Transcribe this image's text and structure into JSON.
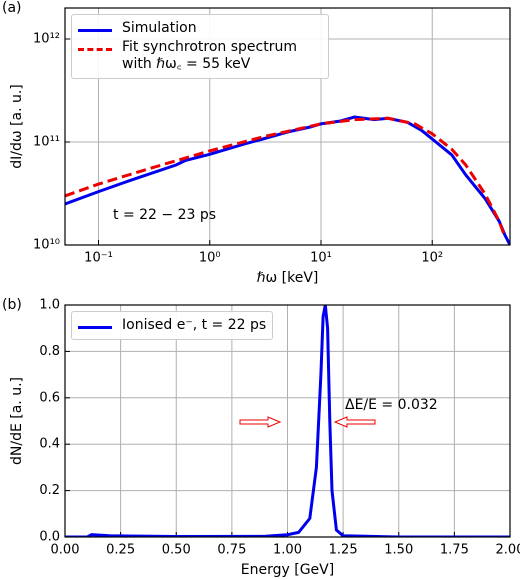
{
  "chart_data": [
    {
      "type": "line",
      "panel_label": "(a)",
      "xlabel": "ℏω [keV]",
      "ylabel": "dI/dω [a. u.]",
      "xscale": "log",
      "yscale": "log",
      "grid": true,
      "xlim": [
        0.05,
        500
      ],
      "ylim": [
        10000000000.0,
        2000000000000.0
      ],
      "xticks": [
        {
          "value": 0.1,
          "label": "10⁻¹"
        },
        {
          "value": 1,
          "label": "10⁰"
        },
        {
          "value": 10,
          "label": "10¹"
        },
        {
          "value": 100,
          "label": "10²"
        }
      ],
      "yticks": [
        {
          "value": 10000000000.0,
          "label": "10¹⁰"
        },
        {
          "value": 100000000000.0,
          "label": "10¹¹"
        },
        {
          "value": 1000000000000.0,
          "label": "10¹²"
        }
      ],
      "annotation": "t = 22 − 23 ps",
      "legend": "upper left",
      "series": [
        {
          "name": "Simulation",
          "color": "#0000ee",
          "dash": false,
          "x": [
            0.05,
            0.1,
            0.2,
            0.5,
            0.6,
            1,
            2,
            3,
            5,
            8,
            10,
            15,
            20,
            30,
            40,
            60,
            80,
            100,
            150,
            200,
            300,
            400,
            450,
            500
          ],
          "values": [
            25000000000.0,
            33000000000.0,
            43000000000.0,
            60000000000.0,
            66000000000.0,
            76000000000.0,
            95000000000.0,
            107000000000.0,
            125000000000.0,
            140000000000.0,
            150000000000.0,
            160000000000.0,
            175000000000.0,
            165000000000.0,
            170000000000.0,
            155000000000.0,
            130000000000.0,
            107000000000.0,
            75000000000.0,
            48000000000.0,
            28000000000.0,
            17000000000.0,
            12500000000.0,
            10000000000.0
          ]
        },
        {
          "name": "Fit synchrotron spectrum with ℏω꜀ = 55 keV",
          "color": "#ee0000",
          "dash": true,
          "x": [
            0.05,
            0.1,
            0.3,
            1,
            3,
            10,
            20,
            40,
            70,
            100,
            150,
            200,
            300,
            400,
            450
          ],
          "values": [
            30000000000.0,
            39000000000.0,
            56000000000.0,
            82000000000.0,
            112000000000.0,
            150000000000.0,
            165000000000.0,
            170000000000.0,
            150000000000.0,
            120000000000.0,
            85000000000.0,
            60000000000.0,
            31000000000.0,
            17000000000.0,
            12000000000.0
          ]
        }
      ]
    },
    {
      "type": "line",
      "panel_label": "(b)",
      "xlabel": "Energy [GeV]",
      "ylabel": "dN/dE [a. u.]",
      "grid": true,
      "xlim": [
        0,
        2
      ],
      "ylim": [
        0,
        1
      ],
      "xticks": [
        {
          "value": 0,
          "label": "0.00"
        },
        {
          "value": 0.25,
          "label": "0.25"
        },
        {
          "value": 0.5,
          "label": "0.50"
        },
        {
          "value": 0.75,
          "label": "0.75"
        },
        {
          "value": 1,
          "label": "1.00"
        },
        {
          "value": 1.25,
          "label": "1.25"
        },
        {
          "value": 1.5,
          "label": "1.50"
        },
        {
          "value": 1.75,
          "label": "1.75"
        },
        {
          "value": 2,
          "label": "2.00"
        }
      ],
      "yticks": [
        {
          "value": 0,
          "label": "0.0"
        },
        {
          "value": 0.2,
          "label": "0.2"
        },
        {
          "value": 0.4,
          "label": "0.4"
        },
        {
          "value": 0.6,
          "label": "0.6"
        },
        {
          "value": 0.8,
          "label": "0.8"
        },
        {
          "value": 1,
          "label": "1.0"
        }
      ],
      "annotation": "ΔE/E = 0.032",
      "legend": "upper left",
      "series": [
        {
          "name": "Ionised e⁻, t = 22 ps",
          "color": "#0000ee",
          "dash": false,
          "x": [
            0,
            0.1,
            0.12,
            0.2,
            0.5,
            0.9,
            1.0,
            1.05,
            1.1,
            1.13,
            1.15,
            1.16,
            1.17,
            1.18,
            1.19,
            1.2,
            1.22,
            1.25,
            1.5,
            2.0
          ],
          "values": [
            0,
            0,
            0.01,
            0.005,
            0.002,
            0.003,
            0.01,
            0.02,
            0.08,
            0.3,
            0.7,
            0.95,
            1.0,
            0.9,
            0.5,
            0.2,
            0.03,
            0.005,
            0,
            0
          ]
        }
      ]
    }
  ]
}
